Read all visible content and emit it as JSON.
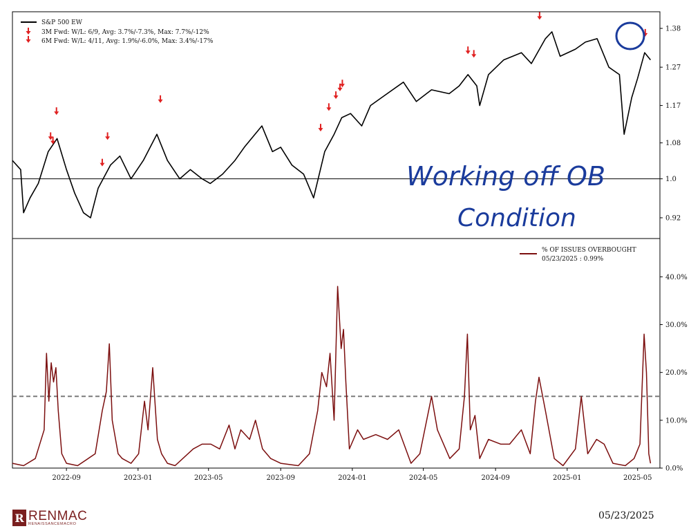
{
  "chart_data": [
    {
      "type": "line",
      "panel": "top",
      "scale": "log",
      "ylim": [
        0.88,
        1.43
      ],
      "yticks": [
        0.92,
        1.0,
        1.08,
        1.17,
        1.27,
        1.38
      ],
      "yticklabels": [
        "0.92",
        "1.0",
        "1.08",
        "1.17",
        "1.27",
        "1.38"
      ],
      "reference_line": 1.0,
      "legend": {
        "position": "top-left",
        "line_label": "S&P 500 EW",
        "arrow3m_label": "3M Fwd: W/L: 6/9, Avg: 3.7%/-7.3%, Max: 7.7%/-12%",
        "arrow6m_label": "6M Fwd: W/L: 4/11, Avg: 1.9%/-6.0%, Max: 3.4%/-17%"
      },
      "series": [
        {
          "name": "S&P 500 EW",
          "x": [
            "2022-06-01",
            "2022-06-15",
            "2022-06-20",
            "2022-07-01",
            "2022-07-15",
            "2022-08-01",
            "2022-08-16",
            "2022-09-01",
            "2022-09-15",
            "2022-09-30",
            "2022-10-12",
            "2022-10-25",
            "2022-11-15",
            "2022-12-01",
            "2022-12-20",
            "2023-01-10",
            "2023-02-02",
            "2023-02-20",
            "2023-03-13",
            "2023-03-31",
            "2023-04-20",
            "2023-05-04",
            "2023-05-25",
            "2023-06-15",
            "2023-07-01",
            "2023-07-31",
            "2023-08-18",
            "2023-09-01",
            "2023-09-20",
            "2023-10-10",
            "2023-10-27",
            "2023-11-15",
            "2023-12-01",
            "2023-12-14",
            "2023-12-29",
            "2024-01-17",
            "2024-02-01",
            "2024-02-20",
            "2024-03-28",
            "2024-04-19",
            "2024-05-15",
            "2024-06-14",
            "2024-07-01",
            "2024-07-16",
            "2024-07-31",
            "2024-08-05",
            "2024-08-20",
            "2024-09-15",
            "2024-10-15",
            "2024-11-01",
            "2024-11-25",
            "2024-12-06",
            "2024-12-20",
            "2025-01-15",
            "2025-02-01",
            "2025-02-21",
            "2025-03-13",
            "2025-03-31",
            "2025-04-08",
            "2025-04-21",
            "2025-05-01",
            "2025-05-13",
            "2025-05-23"
          ],
          "y": [
            1.04,
            1.02,
            0.93,
            0.96,
            0.99,
            1.06,
            1.09,
            1.02,
            0.97,
            0.93,
            0.92,
            0.98,
            1.03,
            1.05,
            1.0,
            1.04,
            1.1,
            1.04,
            1.0,
            1.02,
            1.0,
            0.99,
            1.01,
            1.04,
            1.07,
            1.12,
            1.06,
            1.07,
            1.03,
            1.01,
            0.96,
            1.06,
            1.1,
            1.14,
            1.15,
            1.12,
            1.17,
            1.19,
            1.23,
            1.18,
            1.21,
            1.2,
            1.22,
            1.25,
            1.22,
            1.17,
            1.25,
            1.29,
            1.31,
            1.28,
            1.35,
            1.37,
            1.3,
            1.32,
            1.34,
            1.35,
            1.27,
            1.25,
            1.1,
            1.19,
            1.24,
            1.31,
            1.29
          ],
          "color": "#000000"
        }
      ],
      "signals": [
        {
          "x": "2022-08-05",
          "y": 1.09
        },
        {
          "x": "2022-08-09",
          "y": 1.08
        },
        {
          "x": "2022-08-15",
          "y": 1.15
        },
        {
          "x": "2022-11-01",
          "y": 1.03
        },
        {
          "x": "2022-11-10",
          "y": 1.09
        },
        {
          "x": "2023-02-08",
          "y": 1.18
        },
        {
          "x": "2023-11-08",
          "y": 1.11
        },
        {
          "x": "2023-11-22",
          "y": 1.16
        },
        {
          "x": "2023-12-04",
          "y": 1.19
        },
        {
          "x": "2023-12-11",
          "y": 1.21
        },
        {
          "x": "2023-12-15",
          "y": 1.22
        },
        {
          "x": "2024-07-16",
          "y": 1.31
        },
        {
          "x": "2024-07-26",
          "y": 1.3
        },
        {
          "x": "2024-11-15",
          "y": 1.41
        },
        {
          "x": "2025-05-14",
          "y": 1.36
        }
      ],
      "annotation": {
        "line1": "Working off OB",
        "line2": "Condition"
      }
    },
    {
      "type": "line",
      "panel": "bottom",
      "ylim": [
        0,
        48
      ],
      "yticks": [
        0,
        10,
        20,
        30,
        40
      ],
      "yticklabels": [
        "0.0%",
        "10.0%",
        "20.0%",
        "30.0%",
        "40.0%"
      ],
      "threshold": 15,
      "xticks": [
        "2022-09",
        "2023-01",
        "2023-05",
        "2023-09",
        "2024-01",
        "2024-05",
        "2024-09",
        "2025-01",
        "2025-05"
      ],
      "legend": {
        "position": "top-right",
        "label": "% OF ISSUES OVERBOUGHT",
        "sublabel": "05/23/2025 : 0.99%"
      },
      "series": [
        {
          "name": "% OF ISSUES OVERBOUGHT",
          "x": [
            "2022-06-01",
            "2022-06-20",
            "2022-07-10",
            "2022-07-25",
            "2022-07-29",
            "2022-08-02",
            "2022-08-06",
            "2022-08-10",
            "2022-08-14",
            "2022-08-18",
            "2022-08-24",
            "2022-09-01",
            "2022-09-20",
            "2022-10-20",
            "2022-11-01",
            "2022-11-08",
            "2022-11-13",
            "2022-11-18",
            "2022-11-28",
            "2022-12-05",
            "2022-12-20",
            "2023-01-02",
            "2023-01-12",
            "2023-01-18",
            "2023-01-26",
            "2023-02-03",
            "2023-02-10",
            "2023-02-20",
            "2023-03-05",
            "2023-04-05",
            "2023-04-20",
            "2023-05-05",
            "2023-05-20",
            "2023-06-05",
            "2023-06-15",
            "2023-06-25",
            "2023-07-10",
            "2023-07-20",
            "2023-08-01",
            "2023-08-15",
            "2023-09-01",
            "2023-10-01",
            "2023-10-20",
            "2023-11-03",
            "2023-11-10",
            "2023-11-18",
            "2023-11-24",
            "2023-12-01",
            "2023-12-07",
            "2023-12-13",
            "2023-12-17",
            "2023-12-21",
            "2023-12-27",
            "2024-01-10",
            "2024-01-20",
            "2024-02-10",
            "2024-03-01",
            "2024-03-20",
            "2024-04-10",
            "2024-04-25",
            "2024-05-15",
            "2024-05-25",
            "2024-06-15",
            "2024-07-01",
            "2024-07-10",
            "2024-07-15",
            "2024-07-20",
            "2024-07-28",
            "2024-08-05",
            "2024-08-20",
            "2024-09-10",
            "2024-09-25",
            "2024-10-15",
            "2024-10-30",
            "2024-11-08",
            "2024-11-14",
            "2024-11-25",
            "2024-12-10",
            "2024-12-25",
            "2025-01-15",
            "2025-01-25",
            "2025-02-05",
            "2025-02-20",
            "2025-03-05",
            "2025-03-20",
            "2025-04-10",
            "2025-04-25",
            "2025-05-05",
            "2025-05-12",
            "2025-05-16",
            "2025-05-20",
            "2025-05-23"
          ],
          "y": [
            1,
            0.5,
            2,
            8,
            24,
            14,
            22,
            18,
            21,
            12,
            3,
            1,
            0.5,
            3,
            12,
            16,
            26,
            10,
            3,
            2,
            1,
            3,
            14,
            8,
            21,
            6,
            3,
            1,
            0.5,
            4,
            5,
            5,
            4,
            9,
            4,
            8,
            6,
            10,
            4,
            2,
            1,
            0.5,
            3,
            12,
            20,
            17,
            24,
            10,
            38,
            25,
            29,
            18,
            4,
            8,
            6,
            7,
            6,
            8,
            1,
            3,
            15,
            8,
            2,
            4,
            15,
            28,
            8,
            11,
            2,
            6,
            5,
            5,
            8,
            3,
            14,
            19,
            12,
            2,
            0.5,
            4,
            15,
            3,
            6,
            5,
            1,
            0.5,
            2,
            5,
            28,
            20,
            3,
            1
          ]
        }
      ]
    }
  ],
  "footer": {
    "logo_mark": "R",
    "logo_name": "RENMAC",
    "logo_sub": "RENAISSANCEMACRO",
    "date": "05/23/2025"
  },
  "colors": {
    "price_line": "#000000",
    "overbought_line": "#7b0e0e",
    "signal_arrow": "#e02020",
    "threshold_line": "#7a7a7a",
    "annotation_ink": "#1a3b9c",
    "logo": "#7a1f1f"
  }
}
